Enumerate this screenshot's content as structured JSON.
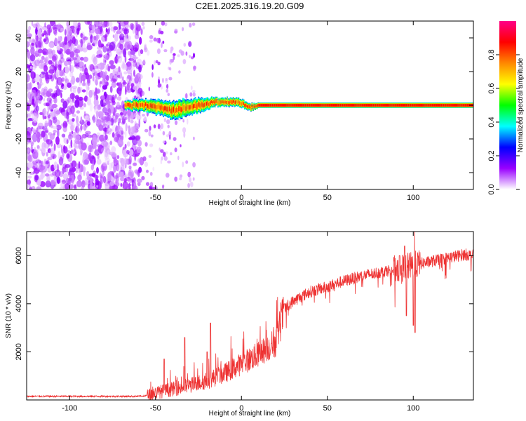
{
  "title": "C2E1.2025.316.19.20.G09",
  "chart_data": [
    {
      "type": "heatmap",
      "name": "spectrogram",
      "xlabel": "Height of straight line (km)",
      "ylabel": "Frequency (Hz)",
      "xlim": [
        -125,
        135
      ],
      "ylim": [
        -50,
        50
      ],
      "xticks": [
        -100,
        -50,
        0,
        50,
        100
      ],
      "yticks": [
        -40,
        -20,
        0,
        20,
        40
      ],
      "colorbar": {
        "label": "Normalized spectral amplitude",
        "range": [
          0,
          1
        ],
        "ticks": [
          0.0,
          0.2,
          0.4,
          0.6,
          0.8
        ],
        "tick_labels": [
          "0.0",
          "0.2",
          "0.4",
          "0.6",
          "0.8"
        ],
        "colors": [
          "#ffffff",
          "#9900ff",
          "#0000ff",
          "#00ffff",
          "#00ff00",
          "#ffff00",
          "#ff8800",
          "#ff0000",
          "#ff0088"
        ]
      },
      "noise_region_km": [
        -125,
        -58
      ],
      "sparse_noise_km": [
        -58,
        -27
      ],
      "signal_track": {
        "height_km": [
          -68,
          -62,
          -56,
          -50,
          -45,
          -40,
          -35,
          -30,
          -25,
          -20,
          -15,
          -10,
          -5,
          0,
          5,
          10,
          20,
          40,
          60,
          80,
          100,
          120,
          135
        ],
        "center_freq_hz": [
          0,
          0,
          0,
          -1,
          -2,
          -3,
          -2,
          -1,
          0,
          1,
          2,
          2,
          2,
          1,
          -1,
          0,
          0,
          0,
          0,
          0,
          0,
          0,
          0
        ],
        "half_width_hz": [
          2,
          3,
          3,
          4,
          4,
          5,
          5,
          4,
          4,
          3,
          2,
          2,
          2,
          2,
          1.5,
          1,
          1,
          1,
          1,
          1,
          1,
          1,
          1
        ]
      }
    },
    {
      "type": "line",
      "name": "snr",
      "xlabel": "Height of straight line (km)",
      "ylabel": "SNR (10 * v/v)",
      "xlim": [
        -125,
        135
      ],
      "ylim": [
        0,
        7000
      ],
      "xticks": [
        -100,
        -50,
        0,
        50,
        100
      ],
      "yticks": [
        2000,
        4000,
        6000
      ],
      "color": "#ee3333",
      "trend": {
        "x": [
          -125,
          -100,
          -60,
          -55,
          -50,
          -40,
          -30,
          -20,
          -10,
          0,
          10,
          20,
          25,
          30,
          40,
          50,
          60,
          70,
          80,
          90,
          95,
          100,
          110,
          120,
          130,
          135
        ],
        "y": [
          150,
          150,
          150,
          180,
          300,
          450,
          600,
          800,
          1100,
          1500,
          1900,
          2400,
          3800,
          4100,
          4500,
          4700,
          4950,
          5150,
          5300,
          5450,
          5500,
          5600,
          5750,
          5900,
          6050,
          6000
        ]
      },
      "peaks": [
        {
          "x": -45,
          "y": 1700
        },
        {
          "x": -33,
          "y": 2600
        },
        {
          "x": -20,
          "y": 2000
        },
        {
          "x": -18,
          "y": 3200
        },
        {
          "x": 25,
          "y": 4000
        },
        {
          "x": 92,
          "y": 6000
        },
        {
          "x": 95,
          "y": 6400
        },
        {
          "x": 101,
          "y": 7000
        }
      ],
      "dips": [
        {
          "x": 96,
          "y": 3500
        },
        {
          "x": 100,
          "y": 3100
        },
        {
          "x": 101,
          "y": 2800
        }
      ]
    }
  ]
}
